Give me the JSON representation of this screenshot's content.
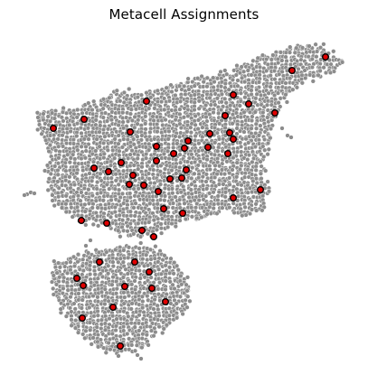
{
  "chart_data": {
    "type": "scatter",
    "title": "Metacell Assignments",
    "xlabel": "",
    "ylabel": "",
    "grid": false,
    "axes_visible": false,
    "series": [
      {
        "role": "cells",
        "color": "#8c8c8c",
        "edge_color": "#ffffff",
        "region_outlines": [
          [
            [
              40,
              125
            ],
            [
              95,
              118
            ],
            [
              130,
              102
            ],
            [
              175,
              100
            ],
            [
              215,
              88
            ],
            [
              250,
              80
            ],
            [
              290,
              62
            ],
            [
              330,
              50
            ],
            [
              360,
              52
            ],
            [
              381,
              70
            ],
            [
              370,
              82
            ],
            [
              340,
              88
            ],
            [
              318,
              105
            ],
            [
              305,
              130
            ],
            [
              296,
              160
            ],
            [
              290,
              195
            ],
            [
              300,
              212
            ],
            [
              292,
              230
            ],
            [
              270,
              238
            ],
            [
              250,
              232
            ],
            [
              230,
              240
            ],
            [
              205,
              245
            ],
            [
              185,
              252
            ],
            [
              170,
              262
            ],
            [
              140,
              262
            ],
            [
              115,
              250
            ],
            [
              95,
              246
            ],
            [
              75,
              236
            ],
            [
              58,
              225
            ],
            [
              52,
              195
            ],
            [
              55,
              168
            ],
            [
              46,
              148
            ]
          ],
          [
            [
              58,
              292
            ],
            [
              85,
              282
            ],
            [
              120,
              276
            ],
            [
              150,
              270
            ],
            [
              175,
              276
            ],
            [
              195,
              292
            ],
            [
              210,
              318
            ],
            [
              205,
              345
            ],
            [
              185,
              360
            ],
            [
              165,
              378
            ],
            [
              150,
              392
            ],
            [
              130,
              392
            ],
            [
              100,
              380
            ],
            [
              80,
              362
            ],
            [
              67,
              340
            ],
            [
              58,
              318
            ]
          ]
        ],
        "stragglers": [
          [
            30,
            215
          ],
          [
            34,
            213
          ],
          [
            38,
            214
          ],
          [
            27,
            216
          ],
          [
            318,
            150
          ],
          [
            322,
            152
          ],
          [
            312,
            142
          ],
          [
            156,
            397
          ],
          [
            152,
            393
          ],
          [
            95,
            272
          ],
          [
            100,
            266
          ],
          [
            42,
            130
          ],
          [
            48,
            126
          ]
        ]
      },
      {
        "role": "metacells",
        "color": "#e00000",
        "edge_color": "#000000",
        "points": [
          [
            360,
            63
          ],
          [
            323,
            78
          ],
          [
            258,
            105
          ],
          [
            275,
            115
          ],
          [
            304,
            125
          ],
          [
            162,
            112
          ],
          [
            93,
            132
          ],
          [
            59,
            142
          ],
          [
            249,
            128
          ],
          [
            144,
            146
          ],
          [
            254,
            147
          ],
          [
            258,
            154
          ],
          [
            232,
            148
          ],
          [
            173,
            162
          ],
          [
            208,
            156
          ],
          [
            204,
            164
          ],
          [
            230,
            163
          ],
          [
            192,
            170
          ],
          [
            252,
            170
          ],
          [
            173,
            178
          ],
          [
            104,
            186
          ],
          [
            120,
            190
          ],
          [
            134,
            180
          ],
          [
            206,
            188
          ],
          [
            188,
            198
          ],
          [
            147,
            194
          ],
          [
            201,
            197
          ],
          [
            143,
            204
          ],
          [
            159,
            205
          ],
          [
            175,
            212
          ],
          [
            288,
            210
          ],
          [
            258,
            219
          ],
          [
            181,
            231
          ],
          [
            202,
            236
          ],
          [
            90,
            244
          ],
          [
            118,
            247
          ],
          [
            157,
            255
          ],
          [
            170,
            262
          ],
          [
            110,
            290
          ],
          [
            149,
            290
          ],
          [
            165,
            301
          ],
          [
            85,
            308
          ],
          [
            92,
            316
          ],
          [
            138,
            317
          ],
          [
            168,
            319
          ],
          [
            183,
            334
          ],
          [
            125,
            340
          ],
          [
            91,
            352
          ],
          [
            133,
            383
          ]
        ]
      }
    ]
  }
}
